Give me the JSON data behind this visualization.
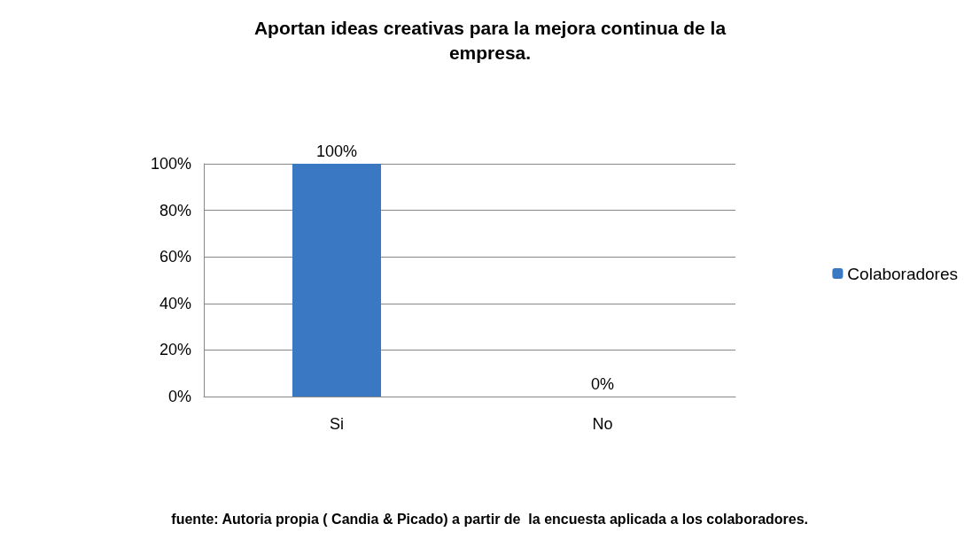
{
  "chart_data": {
    "type": "bar",
    "title": "Aportan ideas creativas para la mejora continua de la\nempresa.",
    "categories": [
      "Si",
      "No"
    ],
    "series": [
      {
        "name": "Colaboradores",
        "color": "#3a78c4",
        "values": [
          100,
          0
        ],
        "value_labels": [
          "100%",
          "0%"
        ]
      }
    ],
    "ylim": [
      0,
      100
    ],
    "yticks": [
      {
        "value": 0,
        "label": "0%"
      },
      {
        "value": 20,
        "label": "20%"
      },
      {
        "value": 40,
        "label": "40%"
      },
      {
        "value": 60,
        "label": "60%"
      },
      {
        "value": 80,
        "label": "80%"
      },
      {
        "value": 100,
        "label": "100%"
      }
    ],
    "grid": "y",
    "legend": "right",
    "annotations": [
      "fuente: Autoria propia ( Candia & Picado) a partir de  la encuesta aplicada a los colaboradores."
    ]
  }
}
